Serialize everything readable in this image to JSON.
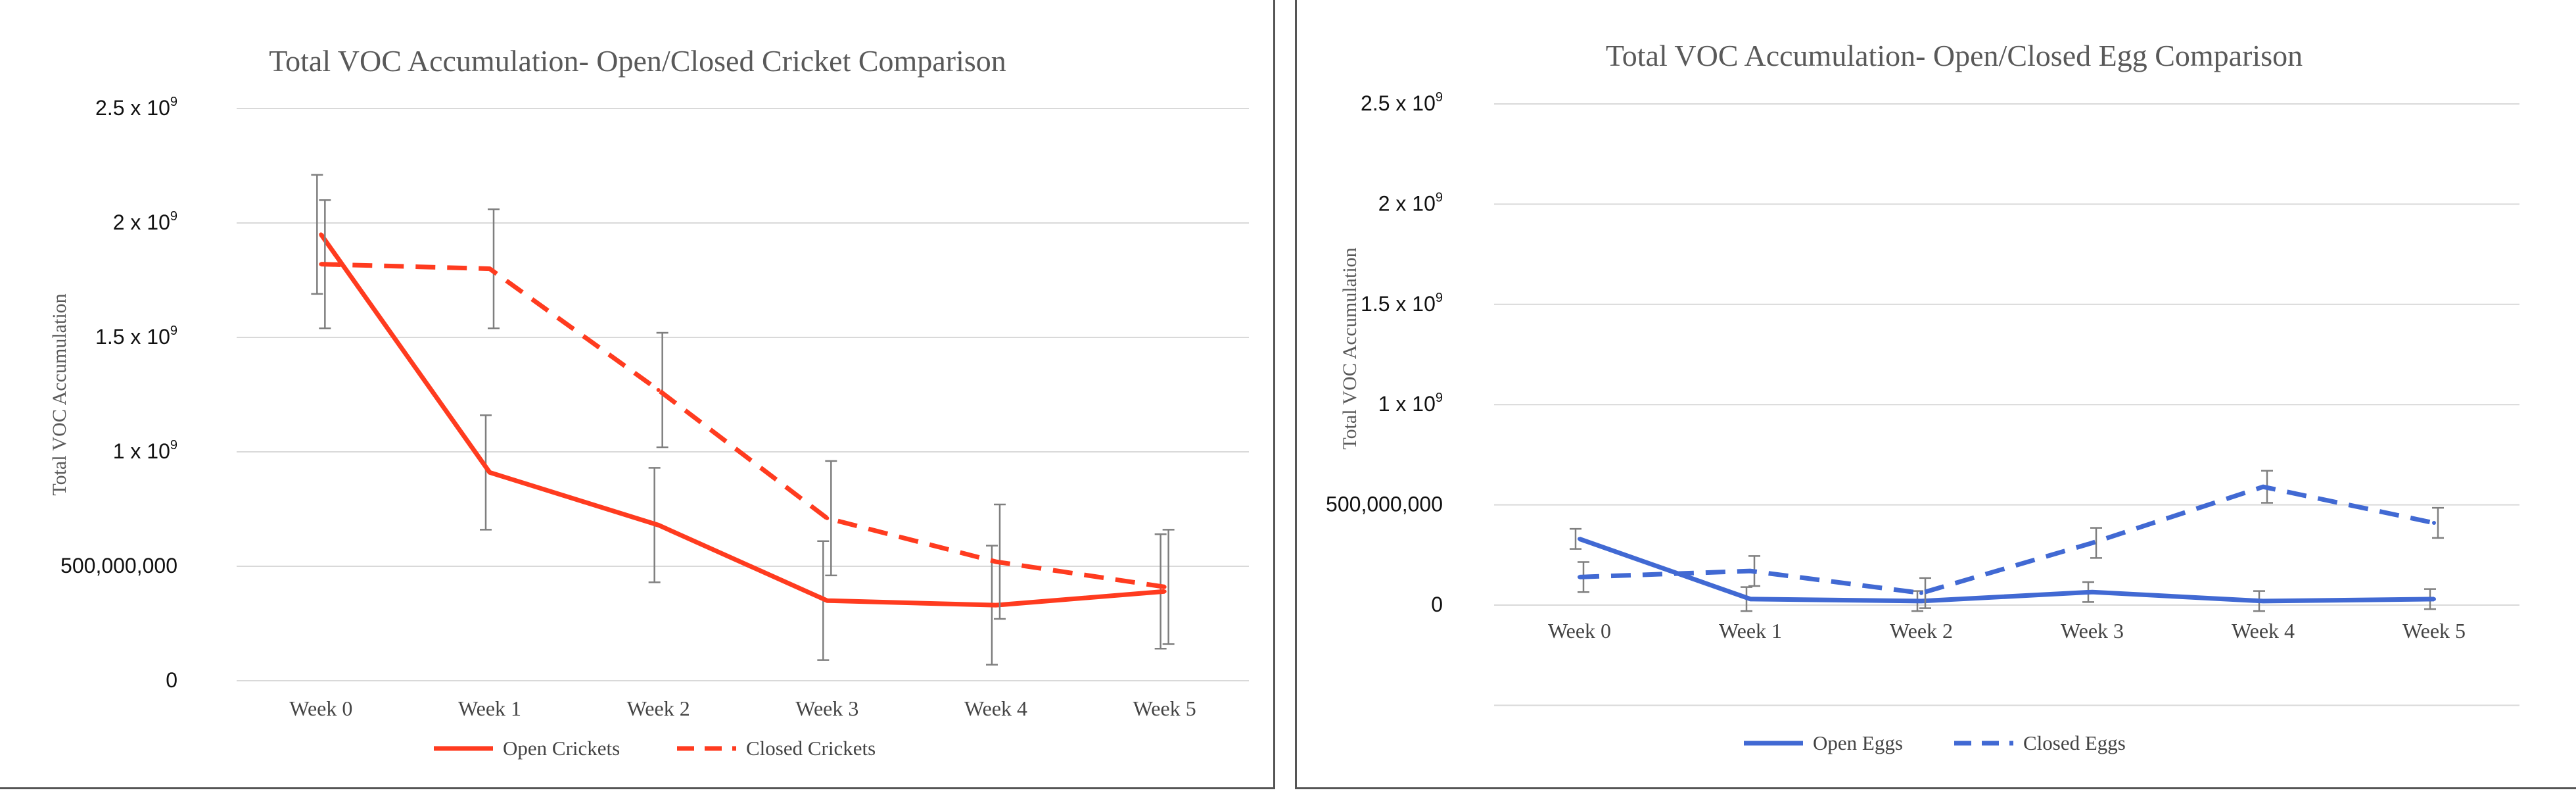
{
  "chart_data": [
    {
      "type": "line",
      "title": "Total VOC Accumulation- Open/Closed Cricket Comparison",
      "ylabel": "Total VOC Accumulation",
      "xlabel": "",
      "ylim": [
        0,
        2500000000
      ],
      "y_ticks": [
        {
          "value": 0,
          "label": "0"
        },
        {
          "value": 500000000,
          "label": "500,000,000"
        },
        {
          "value": 1000000000,
          "label": "1 x 10",
          "sup": "9"
        },
        {
          "value": 1500000000,
          "label": "1.5 x 10",
          "sup": "9"
        },
        {
          "value": 2000000000,
          "label": "2 x 10",
          "sup": "9"
        },
        {
          "value": 2500000000,
          "label": "2.5 x 10",
          "sup": "9"
        }
      ],
      "categories": [
        "Week 0",
        "Week 1",
        "Week 2",
        "Week 3",
        "Week 4",
        "Week 5"
      ],
      "series": [
        {
          "name": "Open Crickets",
          "color": "#ff3b1f",
          "dash": false,
          "values": [
            1950000000,
            910000000,
            680000000,
            350000000,
            330000000,
            390000000
          ],
          "errors": [
            260000000,
            250000000,
            250000000,
            260000000,
            260000000,
            250000000
          ]
        },
        {
          "name": "Closed Crickets",
          "color": "#ff3b1f",
          "dash": true,
          "values": [
            1820000000,
            1800000000,
            1270000000,
            710000000,
            520000000,
            410000000
          ],
          "errors": [
            280000000,
            260000000,
            250000000,
            250000000,
            250000000,
            250000000
          ]
        }
      ],
      "legend": "bottom"
    },
    {
      "type": "line",
      "title": "Total VOC Accumulation- Open/Closed Egg Comparison",
      "ylabel": "Total VOC Accumulation",
      "xlabel": "",
      "ylim": [
        -500000000,
        2500000000
      ],
      "y_ticks": [
        {
          "value": 0,
          "label": "0"
        },
        {
          "value": 500000000,
          "label": "500,000,000"
        },
        {
          "value": 1000000000,
          "label": "1 x 10",
          "sup": "9"
        },
        {
          "value": 1500000000,
          "label": "1.5 x 10",
          "sup": "9"
        },
        {
          "value": 2000000000,
          "label": "2 x 10",
          "sup": "9"
        },
        {
          "value": 2500000000,
          "label": "2.5 x 10",
          "sup": "9"
        }
      ],
      "categories": [
        "Week 0",
        "Week 1",
        "Week 2",
        "Week 3",
        "Week 4",
        "Week 5"
      ],
      "series": [
        {
          "name": "Open Eggs",
          "color": "#4169d3",
          "dash": false,
          "values": [
            330000000,
            30000000,
            20000000,
            65000000,
            20000000,
            30000000
          ],
          "errors": [
            50000000,
            60000000,
            50000000,
            50000000,
            50000000,
            50000000
          ]
        },
        {
          "name": "Closed Eggs",
          "color": "#4169d3",
          "dash": true,
          "values": [
            140000000,
            170000000,
            60000000,
            310000000,
            590000000,
            410000000
          ],
          "errors": [
            75000000,
            75000000,
            75000000,
            75000000,
            80000000,
            75000000
          ]
        }
      ],
      "legend": "bottom"
    }
  ]
}
